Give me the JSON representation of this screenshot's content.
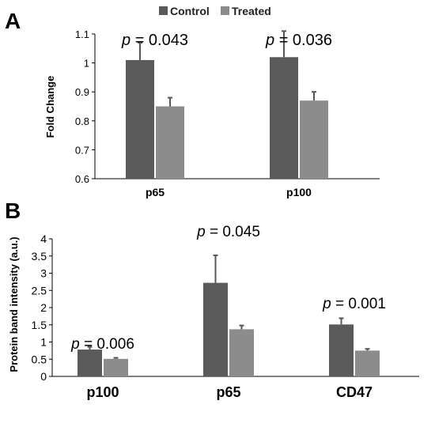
{
  "legend": {
    "items": [
      {
        "name": "Control",
        "color": "#5a5a5a"
      },
      {
        "name": "Treated",
        "color": "#8c8c8c"
      }
    ]
  },
  "chart_data": [
    {
      "type": "bar",
      "panel": "A",
      "ylabel": "Fold Change",
      "xlabel": "",
      "ylim": [
        0.6,
        1.1
      ],
      "yticks": [
        0.6,
        0.7,
        0.8,
        0.9,
        1,
        1.1
      ],
      "ytick_labels": [
        "0.6",
        "0.7",
        "0.8",
        "0.9",
        "1",
        "1.1"
      ],
      "categories": [
        "p65",
        "p100"
      ],
      "series": [
        {
          "name": "Control",
          "values": [
            1.01,
            1.02
          ],
          "errors": [
            0.06,
            0.09
          ]
        },
        {
          "name": "Treated",
          "values": [
            0.85,
            0.87
          ],
          "errors": [
            0.03,
            0.03
          ]
        }
      ],
      "annotations": [
        {
          "p": "p",
          "rest": " = 0.043"
        },
        {
          "p": "p",
          "rest": " = 0.036"
        }
      ]
    },
    {
      "type": "bar",
      "panel": "B",
      "ylabel": "Protein band intensity (a.u.)",
      "xlabel": "",
      "ylim": [
        0,
        4
      ],
      "yticks": [
        0,
        0.5,
        1,
        1.5,
        2,
        2.5,
        3,
        3.5,
        4
      ],
      "ytick_labels": [
        "0",
        "0.5",
        "1",
        "1.5",
        "2",
        "2.5",
        "3",
        "3.5",
        "4"
      ],
      "categories": [
        "p100",
        "p65",
        "CD47"
      ],
      "series": [
        {
          "name": "Control",
          "values": [
            0.78,
            2.72,
            1.51
          ],
          "errors": [
            0.08,
            0.8,
            0.18
          ]
        },
        {
          "name": "Treated",
          "values": [
            0.51,
            1.37,
            0.75
          ],
          "errors": [
            0.03,
            0.11,
            0.05
          ]
        }
      ],
      "annotations": [
        {
          "p": "p",
          "rest": " = 0.006"
        },
        {
          "p": "p",
          "rest": " = 0.045"
        },
        {
          "p": "p",
          "rest": " = 0.001"
        }
      ]
    }
  ]
}
